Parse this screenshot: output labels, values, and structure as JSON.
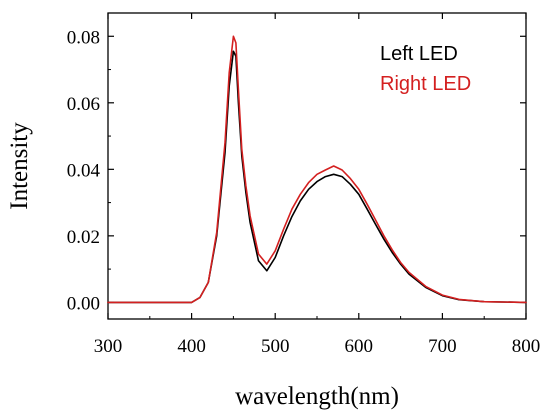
{
  "chart_data": {
    "type": "line",
    "title": "",
    "xlabel": "wavelength(nm)",
    "ylabel": "Intensity",
    "xlim": [
      300,
      800
    ],
    "ylim": [
      -0.005,
      0.087
    ],
    "xticks": [
      300,
      400,
      500,
      600,
      700,
      800
    ],
    "xtick_labels": [
      "300",
      "400",
      "500",
      "600",
      "700",
      "800"
    ],
    "yticks": [
      0.0,
      0.02,
      0.04,
      0.06,
      0.08
    ],
    "ytick_labels": [
      "0.00",
      "0.02",
      "0.04",
      "0.06",
      "0.08"
    ],
    "grid": false,
    "legend": {
      "placement": "top-right"
    },
    "series": [
      {
        "name": "Left LED",
        "color": "#000000",
        "x": [
          300,
          350,
          400,
          410,
          420,
          430,
          440,
          445,
          450,
          453,
          456,
          460,
          465,
          470,
          480,
          490,
          500,
          510,
          520,
          530,
          540,
          550,
          560,
          570,
          580,
          590,
          600,
          610,
          620,
          630,
          640,
          650,
          660,
          680,
          700,
          720,
          750,
          800
        ],
        "y": [
          0.0,
          0.0,
          0.0,
          0.0015,
          0.006,
          0.02,
          0.045,
          0.065,
          0.0755,
          0.074,
          0.06,
          0.044,
          0.033,
          0.024,
          0.0125,
          0.0095,
          0.0135,
          0.02,
          0.0258,
          0.0305,
          0.034,
          0.0363,
          0.0378,
          0.0385,
          0.0378,
          0.0355,
          0.0325,
          0.028,
          0.0235,
          0.019,
          0.015,
          0.0115,
          0.0085,
          0.0045,
          0.002,
          0.0008,
          0.0002,
          0.0
        ]
      },
      {
        "name": "Right LED",
        "color": "#d42020",
        "x": [
          300,
          350,
          400,
          410,
          420,
          430,
          440,
          445,
          450,
          453,
          456,
          460,
          465,
          470,
          480,
          490,
          500,
          510,
          520,
          530,
          540,
          550,
          560,
          570,
          580,
          590,
          600,
          610,
          620,
          630,
          640,
          650,
          660,
          680,
          700,
          720,
          750,
          800
        ],
        "y": [
          0.0,
          0.0,
          0.0,
          0.0015,
          0.006,
          0.021,
          0.048,
          0.069,
          0.08,
          0.078,
          0.064,
          0.046,
          0.035,
          0.026,
          0.0145,
          0.0115,
          0.0155,
          0.022,
          0.028,
          0.0325,
          0.036,
          0.0385,
          0.0398,
          0.041,
          0.0398,
          0.0372,
          0.034,
          0.0295,
          0.0248,
          0.02,
          0.0158,
          0.012,
          0.009,
          0.0048,
          0.0022,
          0.0009,
          0.0002,
          0.0
        ]
      }
    ]
  }
}
